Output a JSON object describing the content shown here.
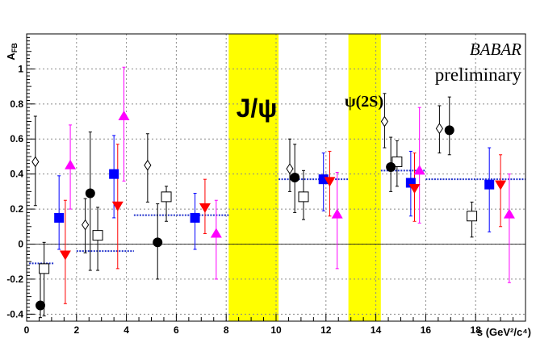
{
  "chart_data": {
    "type": "scatter",
    "title": "",
    "xlabel": "s (GeV²/c⁴)",
    "ylabel": "A_FB",
    "ylabel_main": "A",
    "ylabel_sub": "FB",
    "xlim": [
      0,
      20
    ],
    "ylim": [
      -0.44,
      1.2
    ],
    "x_ticks": [
      0,
      2,
      4,
      6,
      8,
      10,
      12,
      14,
      16,
      18
    ],
    "y_ticks": [
      -0.4,
      -0.2,
      0,
      0.2,
      0.4,
      0.6,
      0.8,
      1
    ],
    "grid": true,
    "annotations": {
      "babar": "BABAR",
      "preliminary": "preliminary",
      "jpsi_label": "J/ψ",
      "psi2s_label": "ψ(2S)"
    },
    "vetoed_bands": [
      {
        "label": "J/ψ",
        "x_range": [
          8.1,
          10.1
        ],
        "color": "#ffff00"
      },
      {
        "label": "ψ(2S)",
        "x_range": [
          12.9,
          14.2
        ],
        "color": "#ffff00"
      }
    ],
    "zero_line": 0,
    "reference_lines": [
      {
        "x_range": [
          0.1,
          1.1
        ],
        "y": -0.11,
        "color": "#2233cc"
      },
      {
        "x_range": [
          2.0,
          4.3
        ],
        "y": -0.04,
        "color": "#2233cc"
      },
      {
        "x_range": [
          4.3,
          8.1
        ],
        "y": 0.165,
        "color": "#2233cc"
      },
      {
        "x_range": [
          10.1,
          12.9
        ],
        "y": 0.37,
        "color": "#2233cc"
      },
      {
        "x_range": [
          14.2,
          16.0
        ],
        "y": 0.42,
        "color": "#2233cc"
      },
      {
        "x_range": [
          16.0,
          20.0
        ],
        "y": 0.37,
        "color": "#2233cc"
      }
    ],
    "series": [
      {
        "marker": "open-diamond",
        "color": "#000000",
        "points": [
          {
            "x": 0.35,
            "y": 0.47,
            "ylo": 0.22,
            "yhi": 0.73
          },
          {
            "x": 2.35,
            "y": 0.11,
            "ylo": -0.05,
            "yhi": 0.26
          },
          {
            "x": 4.85,
            "y": 0.45,
            "ylo": 0.24,
            "yhi": 0.63
          },
          {
            "x": 10.55,
            "y": 0.43,
            "ylo": 0.3,
            "yhi": 0.6
          },
          {
            "x": 14.35,
            "y": 0.7,
            "ylo": 0.55,
            "yhi": 0.86
          },
          {
            "x": 16.55,
            "y": 0.66,
            "ylo": 0.52,
            "yhi": 0.79
          }
        ]
      },
      {
        "marker": "open-square",
        "color": "#000000",
        "points": [
          {
            "x": 0.7,
            "y": -0.14,
            "ylo": -0.41,
            "yhi": 0.01
          },
          {
            "x": 2.85,
            "y": 0.05,
            "ylo": -0.15,
            "yhi": 0.21
          },
          {
            "x": 5.6,
            "y": 0.27,
            "ylo": 0.13,
            "yhi": 0.33
          },
          {
            "x": 11.1,
            "y": 0.27,
            "ylo": 0.14,
            "yhi": 0.42
          },
          {
            "x": 14.85,
            "y": 0.47,
            "ylo": 0.33,
            "yhi": 0.59
          },
          {
            "x": 17.85,
            "y": 0.16,
            "ylo": 0.04,
            "yhi": 0.24
          }
        ]
      },
      {
        "marker": "filled-circle",
        "color": "#000000",
        "points": [
          {
            "x": 0.55,
            "y": -0.35,
            "ylo": -0.42,
            "yhi": -0.16
          },
          {
            "x": 2.55,
            "y": 0.29,
            "ylo": -0.15,
            "yhi": 0.64
          },
          {
            "x": 5.25,
            "y": 0.01,
            "ylo": -0.2,
            "yhi": 0.23
          },
          {
            "x": 10.75,
            "y": 0.38,
            "ylo": 0.18,
            "yhi": 0.57
          },
          {
            "x": 14.6,
            "y": 0.44,
            "ylo": 0.3,
            "yhi": 0.61
          },
          {
            "x": 16.95,
            "y": 0.65,
            "ylo": 0.51,
            "yhi": 0.84
          }
        ]
      },
      {
        "marker": "filled-square",
        "color": "#0000ff",
        "points": [
          {
            "x": 1.3,
            "y": 0.15,
            "ylo": -0.03,
            "yhi": 0.39
          },
          {
            "x": 3.5,
            "y": 0.4,
            "ylo": 0.15,
            "yhi": 0.62
          },
          {
            "x": 6.75,
            "y": 0.15,
            "ylo": -0.03,
            "yhi": 0.29
          },
          {
            "x": 11.9,
            "y": 0.37,
            "ylo": 0.19,
            "yhi": 0.52
          },
          {
            "x": 15.4,
            "y": 0.35,
            "ylo": 0.16,
            "yhi": 0.53
          },
          {
            "x": 18.55,
            "y": 0.34,
            "ylo": 0.07,
            "yhi": 0.55
          }
        ]
      },
      {
        "marker": "down-triangle",
        "color": "#ff0000",
        "points": [
          {
            "x": 1.55,
            "y": -0.06,
            "ylo": -0.34,
            "yhi": 0.25
          },
          {
            "x": 3.65,
            "y": 0.22,
            "ylo": -0.14,
            "yhi": 0.57
          },
          {
            "x": 7.15,
            "y": 0.21,
            "ylo": 0.06,
            "yhi": 0.37
          },
          {
            "x": 12.15,
            "y": 0.36,
            "ylo": 0.16,
            "yhi": 0.53
          },
          {
            "x": 15.55,
            "y": 0.32,
            "ylo": 0.13,
            "yhi": 0.52
          },
          {
            "x": 19.0,
            "y": 0.34,
            "ylo": 0.1,
            "yhi": 0.51
          }
        ]
      },
      {
        "marker": "up-triangle",
        "color": "#ff00ff",
        "points": [
          {
            "x": 1.75,
            "y": 0.45,
            "ylo": 0.2,
            "yhi": 0.68
          },
          {
            "x": 3.9,
            "y": 0.73,
            "ylo": 0.36,
            "yhi": 1.01
          },
          {
            "x": 7.6,
            "y": 0.06,
            "ylo": -0.2,
            "yhi": 0.25
          },
          {
            "x": 12.45,
            "y": 0.17,
            "ylo": -0.14,
            "yhi": 0.41
          },
          {
            "x": 15.75,
            "y": 0.42,
            "ylo": 0.12,
            "yhi": 0.78
          },
          {
            "x": 19.35,
            "y": 0.17,
            "ylo": -0.22,
            "yhi": 0.4
          }
        ]
      }
    ]
  }
}
